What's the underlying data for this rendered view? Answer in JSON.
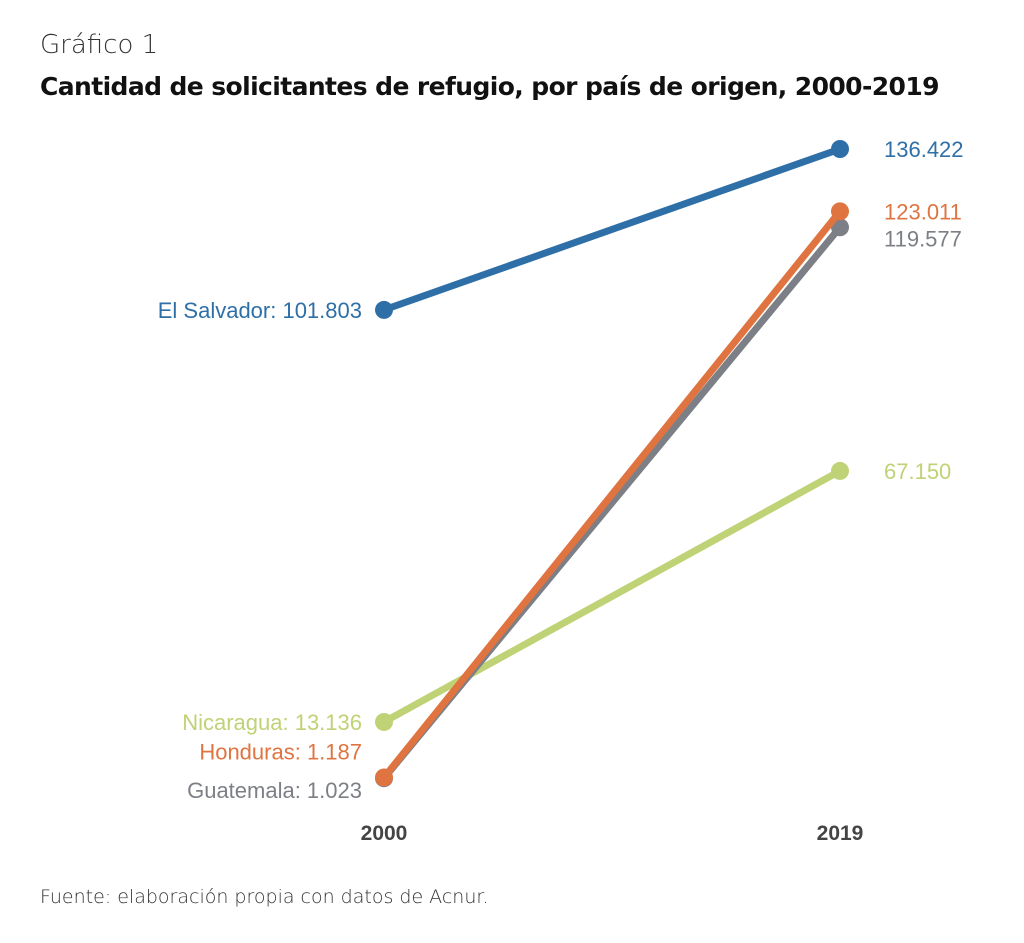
{
  "chart_data": {
    "type": "line",
    "subtype": "slope",
    "kicker": "Gráfico 1",
    "title": "Cantidad de solicitantes de refugio, por país de origen, 2000-2019",
    "source": "Fuente: elaboración propia con datos de Acnur.",
    "categories": [
      "2000",
      "2019"
    ],
    "xlabel": "",
    "ylabel": "",
    "ylim": [
      0,
      140000
    ],
    "grid": false,
    "legend": "direct-labels",
    "series": [
      {
        "name": "El Salvador",
        "values": [
          101803,
          136422
        ],
        "color": "#2e6fa7",
        "start_label": "El Salvador: 101.803",
        "end_label": "136.422"
      },
      {
        "name": "Honduras",
        "values": [
          1187,
          123011
        ],
        "color": "#e07440",
        "start_label": "Honduras: 1.187",
        "end_label": "123.011"
      },
      {
        "name": "Guatemala",
        "values": [
          1023,
          119577
        ],
        "color": "#7c7f86",
        "start_label": "Guatemala: 1.023",
        "end_label": "119.577"
      },
      {
        "name": "Nicaragua",
        "values": [
          13136,
          67150
        ],
        "color": "#bfd275",
        "start_label": "Nicaragua: 13.136",
        "end_label": "67.150"
      }
    ]
  }
}
